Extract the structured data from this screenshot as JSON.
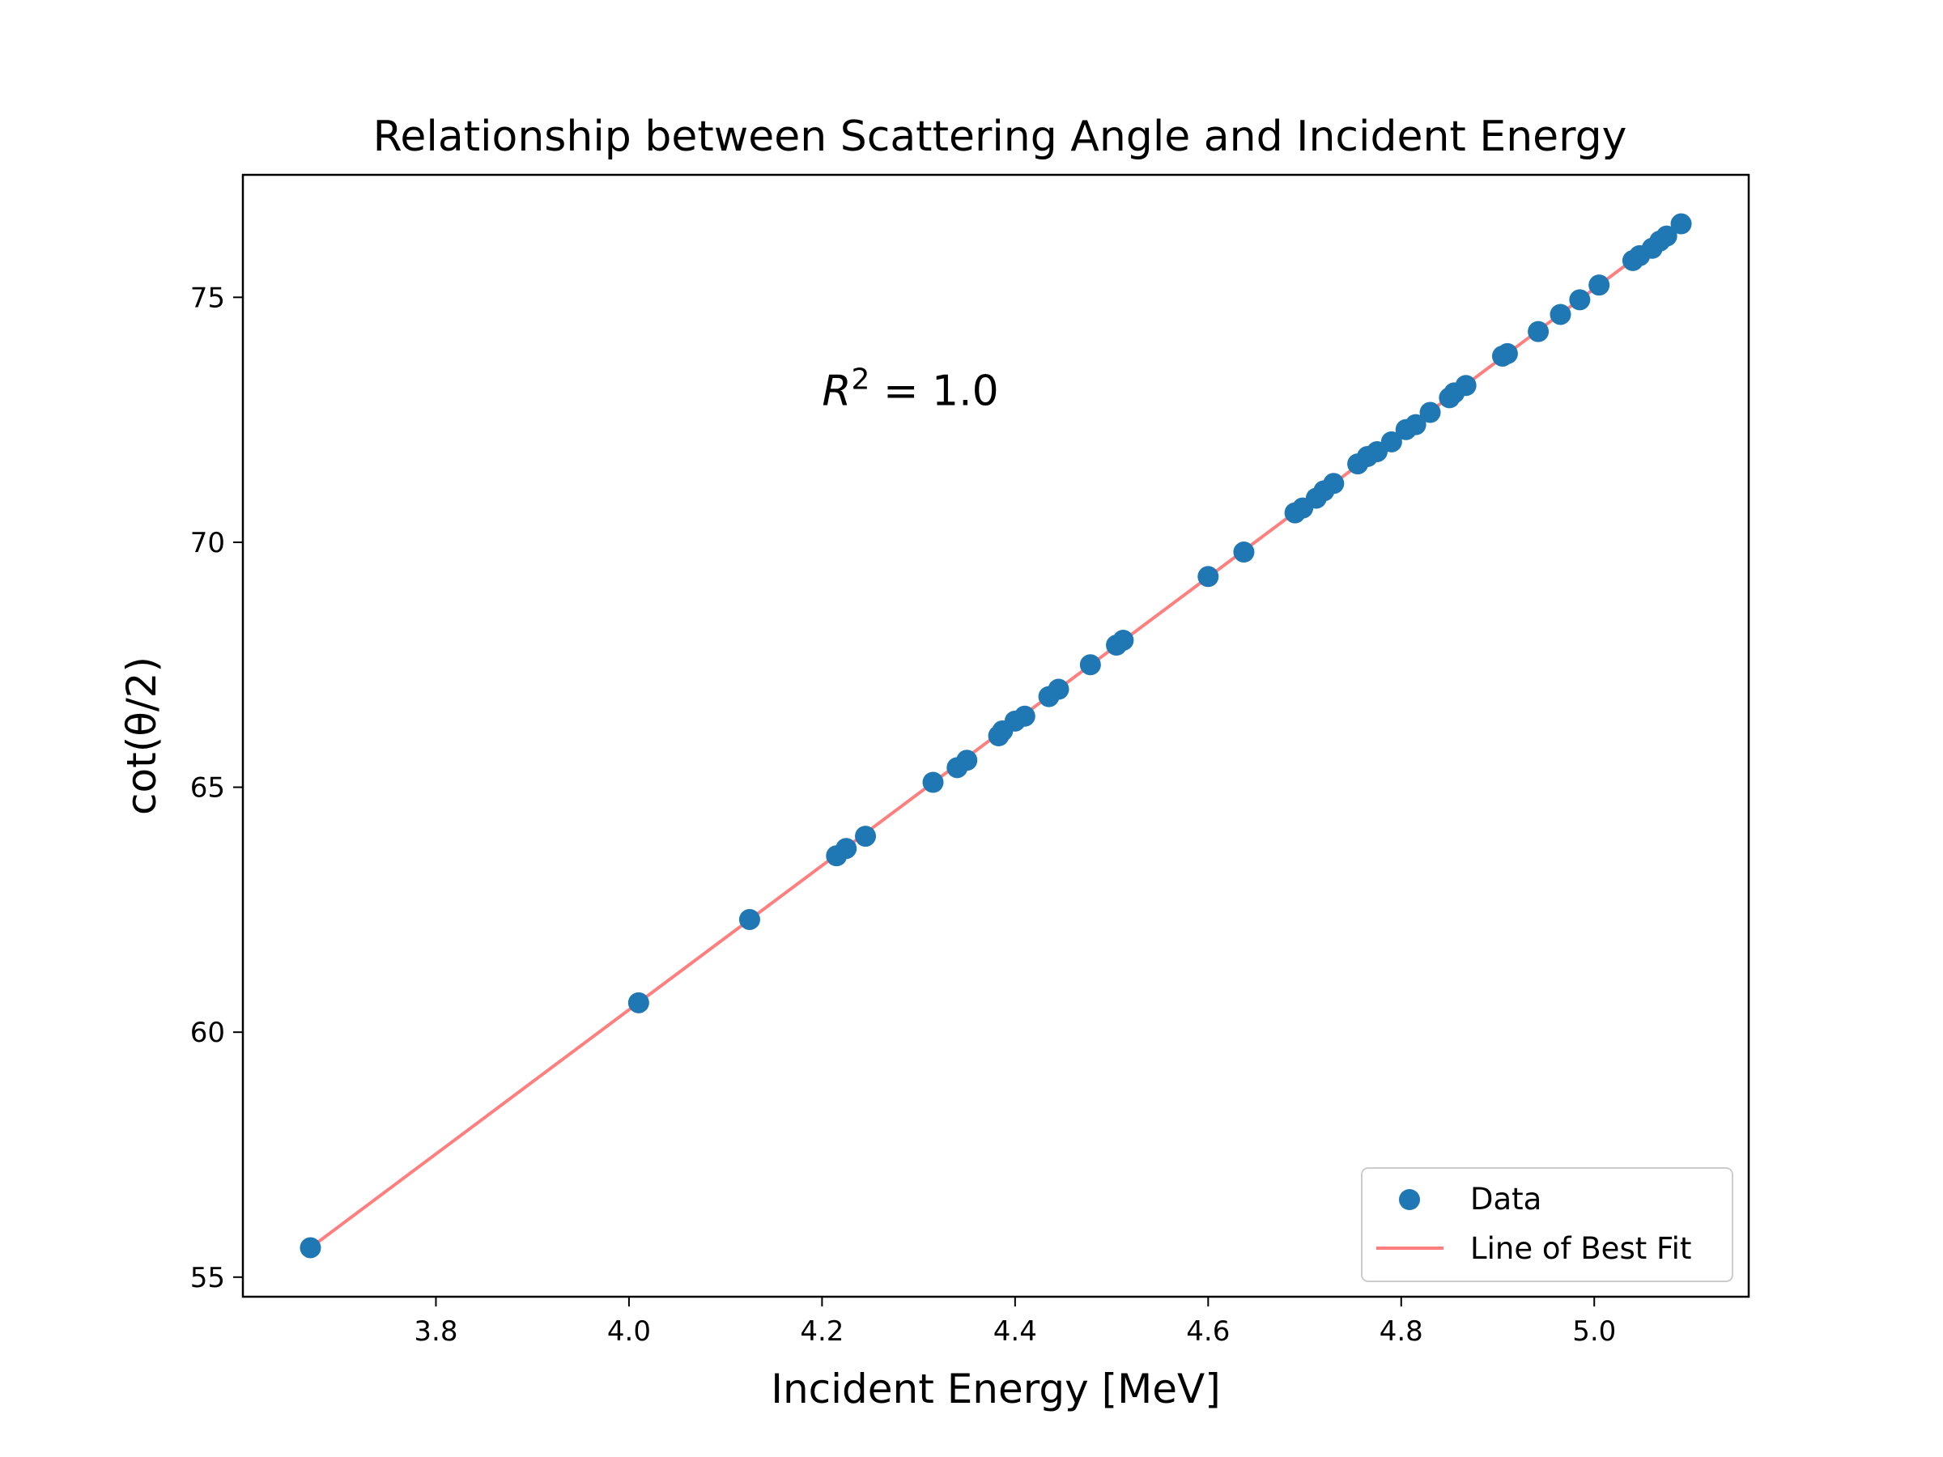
{
  "chart_data": {
    "type": "scatter",
    "title": "Relationship between Scattering Angle and Incident Energy",
    "xlabel": "Incident Energy [MeV]",
    "ylabel": "cot(θ/2)",
    "xlim": [
      3.6,
      5.16
    ],
    "ylim": [
      54.6,
      77.5
    ],
    "xticks": [
      3.8,
      4.0,
      4.2,
      4.4,
      4.6,
      4.8,
      5.0
    ],
    "xtick_labels": [
      "3.8",
      "4.0",
      "4.2",
      "4.4",
      "4.6",
      "4.8",
      "5.0"
    ],
    "yticks": [
      55,
      60,
      65,
      70,
      75
    ],
    "ytick_labels": [
      "55",
      "60",
      "65",
      "70",
      "75"
    ],
    "grid": false,
    "legend_position": "bottom-right",
    "annotation": {
      "base": "R",
      "superscript": "2",
      "rest": " = 1.0",
      "position": [
        4.2,
        72.8
      ]
    },
    "series": [
      {
        "name": "Data",
        "kind": "scatter",
        "color": "#1f77b4",
        "points": [
          [
            3.67,
            55.6
          ],
          [
            4.01,
            60.6
          ],
          [
            4.125,
            62.3
          ],
          [
            4.215,
            63.6
          ],
          [
            4.225,
            63.75
          ],
          [
            4.245,
            64.0
          ],
          [
            4.315,
            65.1
          ],
          [
            4.34,
            65.4
          ],
          [
            4.35,
            65.55
          ],
          [
            4.383,
            66.05
          ],
          [
            4.387,
            66.15
          ],
          [
            4.4,
            66.35
          ],
          [
            4.41,
            66.45
          ],
          [
            4.435,
            66.85
          ],
          [
            4.445,
            67.0
          ],
          [
            4.478,
            67.5
          ],
          [
            4.505,
            67.9
          ],
          [
            4.512,
            68.0
          ],
          [
            4.6,
            69.3
          ],
          [
            4.637,
            69.8
          ],
          [
            4.69,
            70.6
          ],
          [
            4.698,
            70.7
          ],
          [
            4.712,
            70.9
          ],
          [
            4.72,
            71.05
          ],
          [
            4.73,
            71.2
          ],
          [
            4.755,
            71.6
          ],
          [
            4.765,
            71.75
          ],
          [
            4.775,
            71.85
          ],
          [
            4.79,
            72.05
          ],
          [
            4.805,
            72.3
          ],
          [
            4.815,
            72.4
          ],
          [
            4.83,
            72.65
          ],
          [
            4.85,
            72.95
          ],
          [
            4.855,
            73.05
          ],
          [
            4.867,
            73.2
          ],
          [
            4.905,
            73.8
          ],
          [
            4.91,
            73.85
          ],
          [
            4.942,
            74.3
          ],
          [
            4.965,
            74.65
          ],
          [
            4.985,
            74.95
          ],
          [
            5.005,
            75.25
          ],
          [
            5.04,
            75.75
          ],
          [
            5.047,
            75.85
          ],
          [
            5.06,
            76.0
          ],
          [
            5.068,
            76.15
          ],
          [
            5.075,
            76.25
          ],
          [
            5.09,
            76.5
          ]
        ]
      },
      {
        "name": "Line of Best Fit",
        "kind": "line",
        "color": "#ff7f7f",
        "x": [
          3.67,
          5.09
        ],
        "y": [
          55.6,
          76.5
        ]
      }
    ]
  }
}
